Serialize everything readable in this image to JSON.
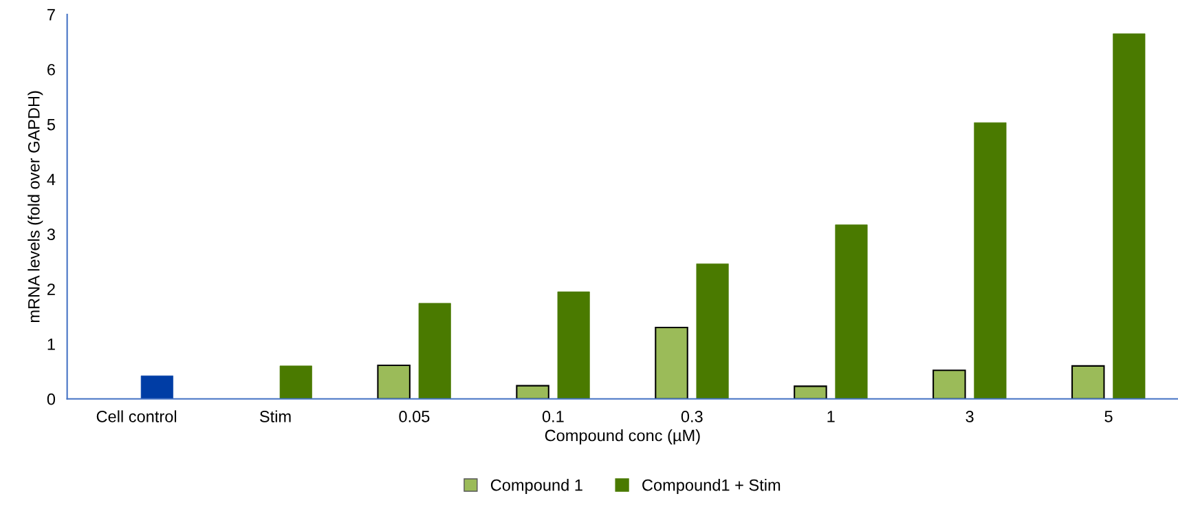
{
  "chart_data": {
    "type": "bar",
    "xlabel": "Compound conc (µM)",
    "ylabel": "mRNA levels (fold over GAPDH)",
    "categories": [
      "Cell control",
      "Stim",
      "0.05",
      "0.1",
      "0.3",
      "1",
      "3",
      "5"
    ],
    "series": [
      {
        "name": "Compound 1",
        "color": "#9bbb59",
        "values": [
          null,
          null,
          0.61,
          0.24,
          1.3,
          0.23,
          0.52,
          0.6
        ]
      },
      {
        "name": "Compound1 + Stim",
        "color": "#4a7a00",
        "colors": [
          "#003da5",
          "#4a7a00",
          "#4a7a00",
          "#4a7a00",
          "#4a7a00",
          "#4a7a00",
          "#4a7a00",
          "#4a7a00"
        ],
        "values": [
          0.42,
          0.6,
          1.74,
          1.95,
          2.46,
          3.17,
          5.03,
          6.65
        ]
      }
    ],
    "ylim": [
      0,
      7
    ],
    "yticks": [
      0,
      1,
      2,
      3,
      4,
      5,
      6,
      7
    ],
    "legend": "bottom"
  }
}
